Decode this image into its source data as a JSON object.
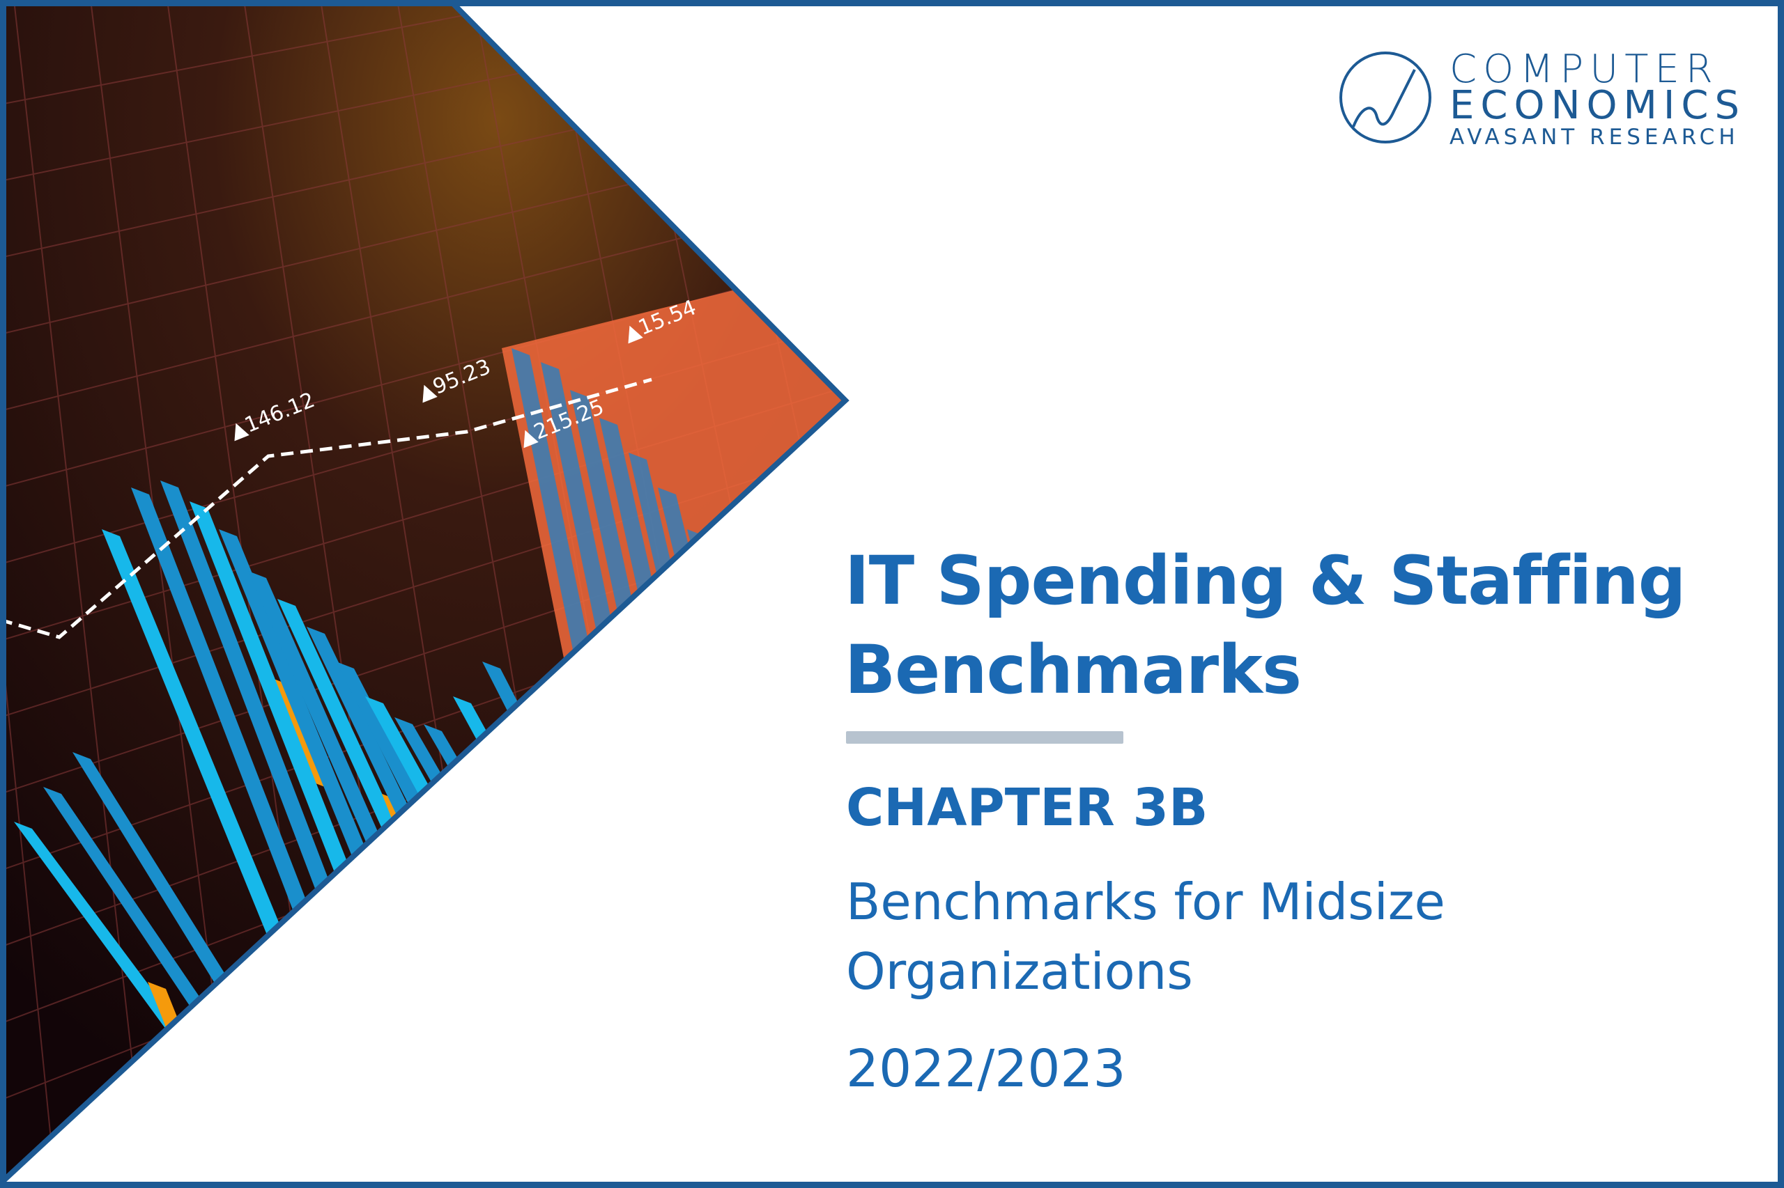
{
  "logo": {
    "line1": "COMPUTER",
    "line2": "ECONOMICS",
    "line3": "AVASANT RESEARCH"
  },
  "cover": {
    "title_line1": "IT Spending & Staffing",
    "title_line2": "Benchmarks",
    "chapter": "CHAPTER 3B",
    "subtitle_line1": "Benchmarks for Midsize",
    "subtitle_line2": "Organizations",
    "year": "2022/2023"
  },
  "image_labels": [
    "▲146.12",
    "▲95.23",
    "▲215.25",
    "▲15.54"
  ],
  "colors": {
    "brand_blue": "#1b69b3",
    "frame_blue": "#1d5a94",
    "rule_gray": "#b7c3cf",
    "bar_blue": "#1a9bd7",
    "bar_orange": "#f59a0c"
  }
}
